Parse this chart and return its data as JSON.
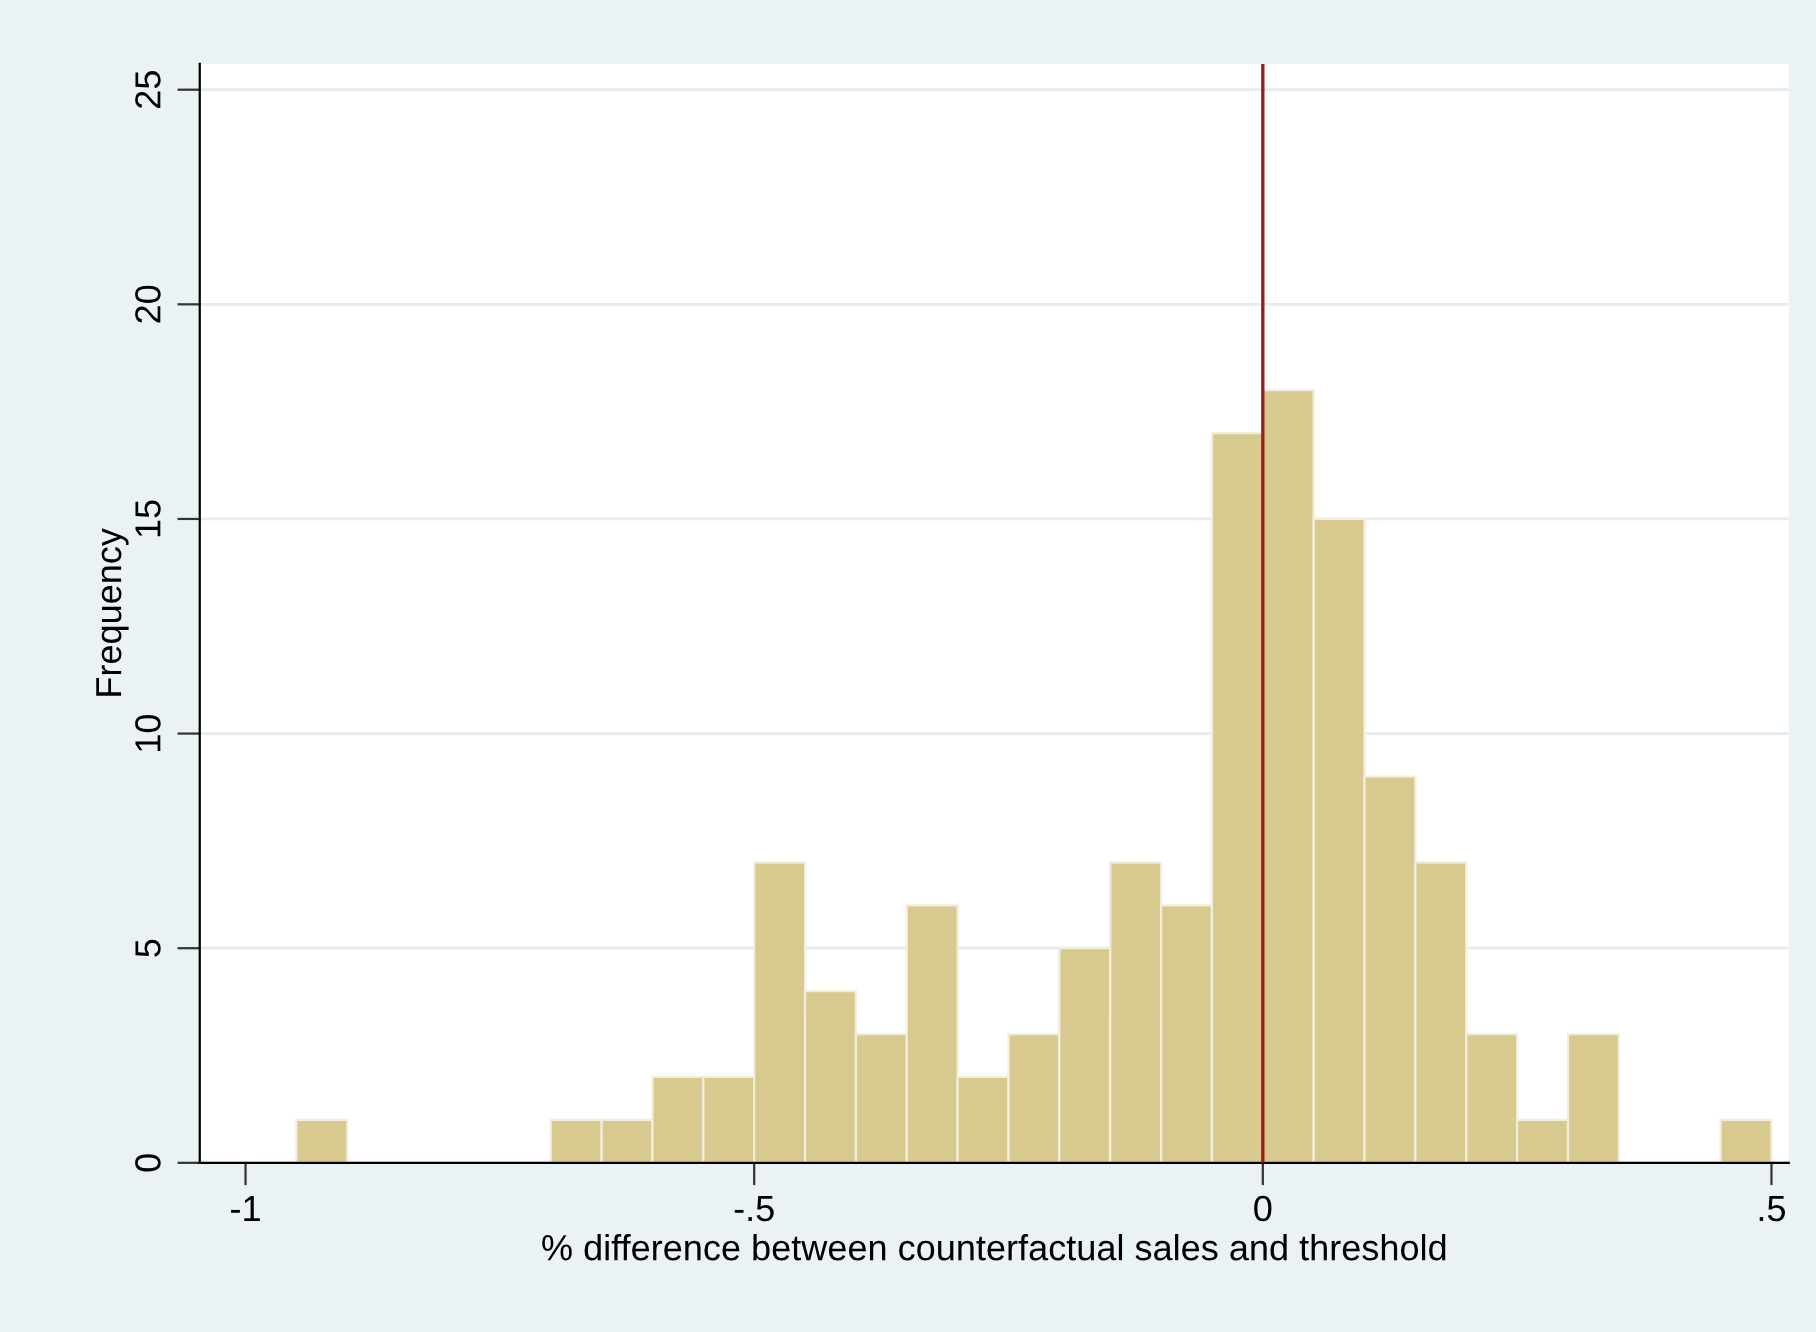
{
  "chart_data": {
    "type": "histogram",
    "xlabel": "% difference between counterfactual sales and threshold",
    "ylabel": "Frequency",
    "bins": [
      -0.95,
      -0.9,
      -0.85,
      -0.8,
      -0.75,
      -0.7,
      -0.65,
      -0.6,
      -0.55,
      -0.5,
      -0.45,
      -0.4,
      -0.35,
      -0.3,
      -0.25,
      -0.2,
      -0.15,
      -0.1,
      -0.05,
      0,
      0.05,
      0.1,
      0.15,
      0.2,
      0.25,
      0.3,
      0.35,
      0.4,
      0.45,
      0.5
    ],
    "values": [
      1,
      0,
      0,
      0,
      0,
      1,
      1,
      2,
      2,
      7,
      4,
      3,
      6,
      2,
      3,
      5,
      7,
      6,
      17,
      18,
      15,
      9,
      7,
      3,
      1,
      3,
      0,
      0,
      1
    ],
    "color": "#d8c98f",
    "xlim": [
      -1.045,
      0.517
    ],
    "ylim": [
      0,
      25.6
    ],
    "xticks": [
      {
        "value": -1,
        "label": "-1"
      },
      {
        "value": -0.5,
        "label": "-.5"
      },
      {
        "value": 0,
        "label": "0"
      },
      {
        "value": 0.5,
        "label": ".5"
      }
    ],
    "yticks": [
      0,
      5,
      10,
      15,
      20,
      25
    ],
    "grid": "y",
    "ref_lines": [
      {
        "axis": "x",
        "value": 0,
        "label": null,
        "color": "#9b1c1c"
      }
    ]
  }
}
